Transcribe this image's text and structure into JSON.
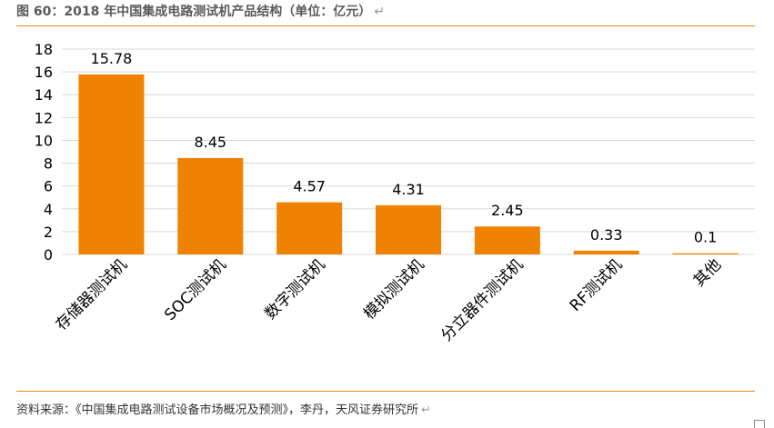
{
  "header": {
    "title": "图 60：2018 年中国集成电路测试机产品结构（单位：亿元）",
    "return_mark": "↵"
  },
  "footer": {
    "source": "资料来源：《中国集成电路测试设备市场概况及预测》，李丹，天风证券研究所",
    "return_mark": "↵"
  },
  "colors": {
    "bar": "#ef8200",
    "rule": "#e8891e",
    "grid": "#d9d9d9"
  },
  "chart_data": {
    "type": "bar",
    "categories": [
      "存储器测试机",
      "SOC测试机",
      "数字测试机",
      "模拟测试机",
      "分立器件测试机",
      "RF测试机",
      "其他"
    ],
    "values": [
      15.78,
      8.45,
      4.57,
      4.31,
      2.45,
      0.33,
      0.1
    ],
    "data_labels": [
      "15.78",
      "8.45",
      "4.57",
      "4.31",
      "2.45",
      "0.33",
      "0.1"
    ],
    "ylim": [
      0,
      18
    ],
    "yticks": [
      0,
      2,
      4,
      6,
      8,
      10,
      12,
      14,
      16,
      18
    ],
    "grid": true,
    "xlabel": "",
    "ylabel": ""
  }
}
